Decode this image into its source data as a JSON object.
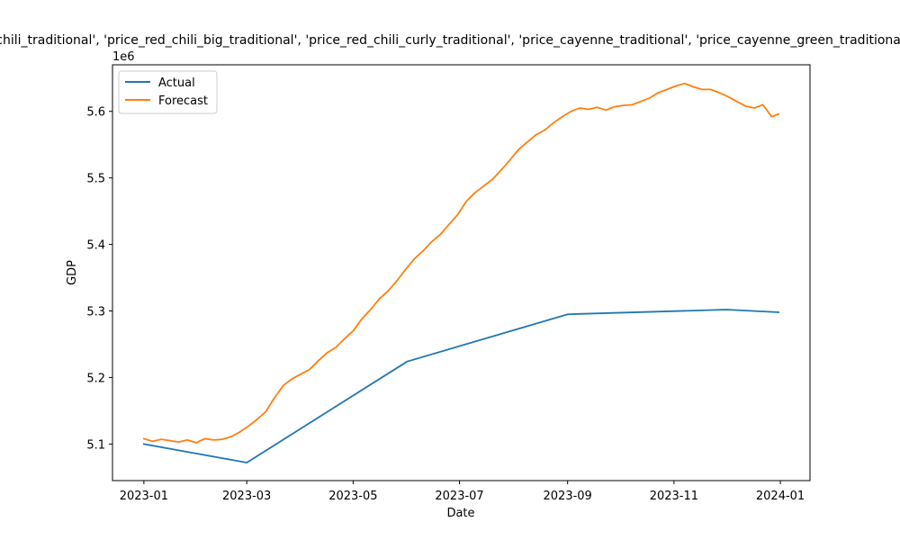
{
  "chart_data": {
    "type": "line",
    "title": "chili_traditional', 'price_red_chili_big_traditional', 'price_red_chili_curly_traditional', 'price_cayenne_traditional', 'price_cayenne_green_traditional",
    "xlabel": "Date",
    "ylabel": "GDP",
    "y_offset_label": "1e6",
    "x_ticks": [
      "2023-01",
      "2023-03",
      "2023-05",
      "2023-07",
      "2023-09",
      "2023-11",
      "2024-01"
    ],
    "y_ticks": [
      "5.1",
      "5.2",
      "5.3",
      "5.4",
      "5.5",
      "5.6"
    ],
    "y_tick_values": [
      5.1,
      5.2,
      5.3,
      5.4,
      5.5,
      5.6
    ],
    "xlim": [
      "2022-12-14",
      "2024-01-18"
    ],
    "ylim": [
      5.045,
      5.67
    ],
    "y_scale": 1000000,
    "legend_position": "upper-left",
    "series": [
      {
        "name": "Actual",
        "color": "#1f77b4",
        "x": [
          "2023-01-01",
          "2023-03-01",
          "2023-06-01",
          "2023-09-01",
          "2023-12-01",
          "2023-12-31"
        ],
        "y": [
          5.1,
          5.072,
          5.224,
          5.295,
          5.302,
          5.298
        ]
      },
      {
        "name": "Forecast",
        "color": "#ff7f0e",
        "x": [
          "2023-01-01",
          "2023-01-06",
          "2023-01-11",
          "2023-01-16",
          "2023-01-21",
          "2023-01-26",
          "2023-01-31",
          "2023-02-05",
          "2023-02-10",
          "2023-02-15",
          "2023-02-20",
          "2023-02-25",
          "2023-03-02",
          "2023-03-07",
          "2023-03-12",
          "2023-03-17",
          "2023-03-22",
          "2023-03-27",
          "2023-04-01",
          "2023-04-06",
          "2023-04-11",
          "2023-04-16",
          "2023-04-21",
          "2023-04-26",
          "2023-05-01",
          "2023-05-06",
          "2023-05-11",
          "2023-05-16",
          "2023-05-21",
          "2023-05-26",
          "2023-05-31",
          "2023-06-05",
          "2023-06-10",
          "2023-06-15",
          "2023-06-20",
          "2023-06-25",
          "2023-06-30",
          "2023-07-05",
          "2023-07-10",
          "2023-07-15",
          "2023-07-20",
          "2023-07-25",
          "2023-07-30",
          "2023-08-04",
          "2023-08-09",
          "2023-08-14",
          "2023-08-19",
          "2023-08-24",
          "2023-08-29",
          "2023-09-03",
          "2023-09-08",
          "2023-09-13",
          "2023-09-18",
          "2023-09-23",
          "2023-09-28",
          "2023-10-03",
          "2023-10-08",
          "2023-10-13",
          "2023-10-18",
          "2023-10-23",
          "2023-10-28",
          "2023-11-02",
          "2023-11-07",
          "2023-11-12",
          "2023-11-17",
          "2023-11-22",
          "2023-11-27",
          "2023-12-02",
          "2023-12-07",
          "2023-12-12",
          "2023-12-17",
          "2023-12-22",
          "2023-12-27",
          "2023-12-31"
        ],
        "y": [
          5.108,
          5.104,
          5.107,
          5.105,
          5.103,
          5.106,
          5.102,
          5.108,
          5.106,
          5.107,
          5.111,
          5.118,
          5.127,
          5.137,
          5.149,
          5.17,
          5.188,
          5.198,
          5.205,
          5.212,
          5.225,
          5.237,
          5.245,
          5.258,
          5.27,
          5.288,
          5.302,
          5.318,
          5.33,
          5.345,
          5.362,
          5.378,
          5.39,
          5.404,
          5.415,
          5.43,
          5.445,
          5.465,
          5.478,
          5.488,
          5.498,
          5.512,
          5.527,
          5.543,
          5.554,
          5.565,
          5.572,
          5.583,
          5.592,
          5.6,
          5.605,
          5.603,
          5.606,
          5.602,
          5.607,
          5.609,
          5.61,
          5.615,
          5.62,
          5.628,
          5.633,
          5.638,
          5.642,
          5.637,
          5.633,
          5.633,
          5.628,
          5.622,
          5.615,
          5.608,
          5.605,
          5.61,
          5.592,
          5.596
        ]
      }
    ]
  }
}
